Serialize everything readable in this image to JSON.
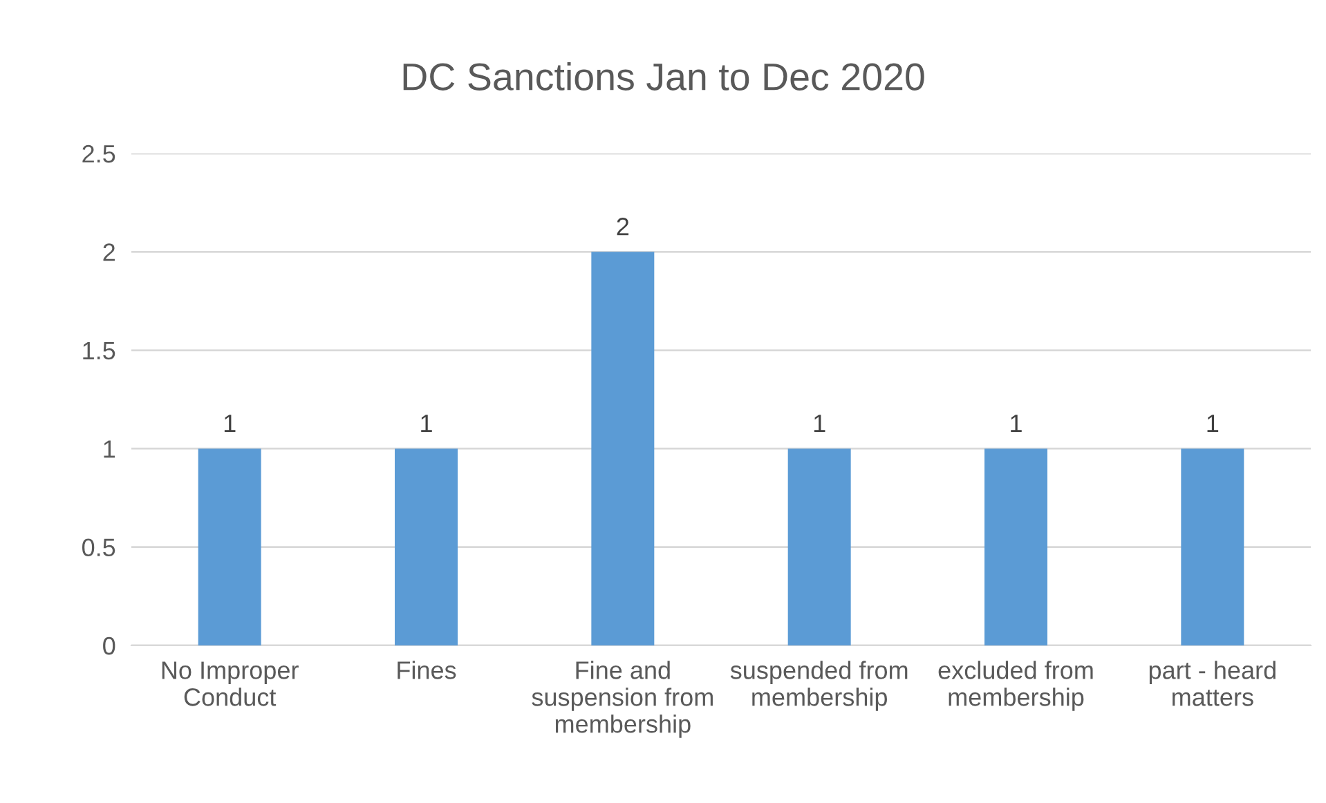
{
  "chart_data": {
    "type": "bar",
    "title": "DC Sanctions Jan to Dec 2020",
    "categories": [
      "No Improper\nConduct",
      "Fines",
      "Fine and\nsuspension from\nmembership",
      "suspended from\nmembership",
      "excluded from\nmembership",
      "part - heard\nmatters"
    ],
    "values": [
      1,
      1,
      2,
      1,
      1,
      1
    ],
    "color": "#5b9bd5",
    "ylim": [
      0,
      2.5
    ],
    "yticks": [
      0,
      0.5,
      1,
      1.5,
      2,
      2.5
    ],
    "grid": "y",
    "data_labels": true
  }
}
